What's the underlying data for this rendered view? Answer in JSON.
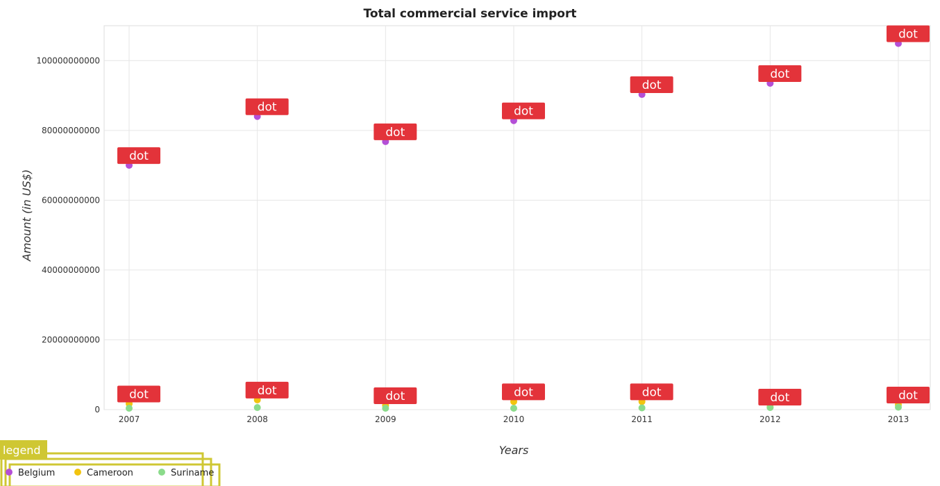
{
  "chart_data": {
    "type": "scatter",
    "title": "Total commercial service import",
    "xlabel": "Years",
    "ylabel": "Amount (in US$)",
    "x": [
      2007,
      2008,
      2009,
      2010,
      2011,
      2012,
      2013
    ],
    "x_tick_labels": [
      "2007",
      "2008",
      "2009",
      "2010",
      "2011",
      "2012",
      "2013"
    ],
    "ylim": [
      0,
      110000000000
    ],
    "y_ticks": [
      0,
      20000000000,
      40000000000,
      60000000000,
      80000000000,
      100000000000
    ],
    "y_tick_labels": [
      "0",
      "20000000000",
      "40000000000",
      "60000000000",
      "80000000000",
      "100000000000"
    ],
    "grid": true,
    "legend_position": "bottom-left",
    "legend_title": "legend",
    "annotation_text": "dot",
    "series": [
      {
        "name": "Belgium",
        "color": "#b44fd6",
        "values": [
          70000000000,
          84000000000,
          76800000000,
          82800000000,
          90300000000,
          93500000000,
          104900000000
        ]
      },
      {
        "name": "Cameroon",
        "color": "#f2c40f",
        "values": [
          1700000000,
          2800000000,
          1200000000,
          2300000000,
          2300000000,
          800000000,
          1400000000
        ]
      },
      {
        "name": "Suriname",
        "color": "#8bdb8b",
        "values": [
          400000000,
          600000000,
          400000000,
          400000000,
          500000000,
          600000000,
          700000000
        ]
      }
    ]
  }
}
